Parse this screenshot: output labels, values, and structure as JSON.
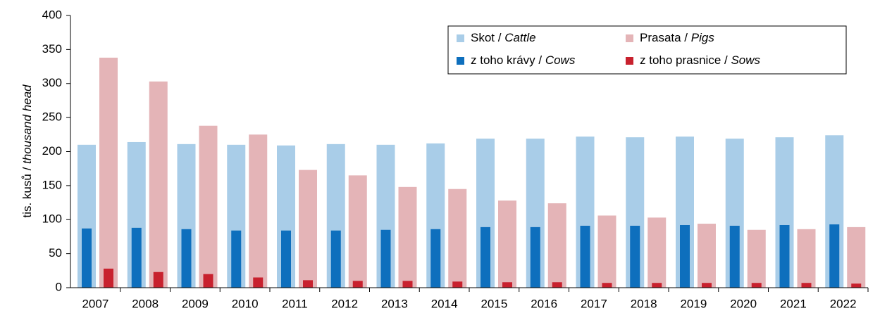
{
  "chart_data": {
    "type": "bar",
    "y_label": "tis. kusů / thousand head",
    "categories": [
      "2007",
      "2008",
      "2009",
      "2010",
      "2011",
      "2012",
      "2013",
      "2014",
      "2015",
      "2016",
      "2017",
      "2018",
      "2019",
      "2020",
      "2021",
      "2022"
    ],
    "series": [
      {
        "name": "Skot / Cattle",
        "color": "#a9cde8",
        "values": [
          210,
          214,
          211,
          210,
          209,
          211,
          210,
          212,
          219,
          219,
          222,
          221,
          222,
          219,
          221,
          224
        ]
      },
      {
        "name": "Prasata / Pigs",
        "color": "#e4b4b7",
        "values": [
          338,
          303,
          238,
          225,
          173,
          165,
          148,
          145,
          128,
          124,
          106,
          103,
          94,
          85,
          86,
          89
        ]
      },
      {
        "name": "z toho krávy / Cows",
        "color": "#0e6fbd",
        "values": [
          87,
          88,
          86,
          84,
          84,
          84,
          85,
          86,
          89,
          89,
          91,
          91,
          92,
          91,
          92,
          93
        ]
      },
      {
        "name": "z toho prasnice / Sows",
        "color": "#c8212e",
        "values": [
          28,
          23,
          20,
          15,
          11,
          10,
          10,
          9,
          8,
          8,
          7,
          7,
          7,
          7,
          7,
          6
        ]
      }
    ],
    "ylim": [
      0,
      400
    ],
    "yticks": [
      0,
      50,
      100,
      150,
      200,
      250,
      300,
      350,
      400
    ],
    "grid": false,
    "legend": "top-right"
  }
}
